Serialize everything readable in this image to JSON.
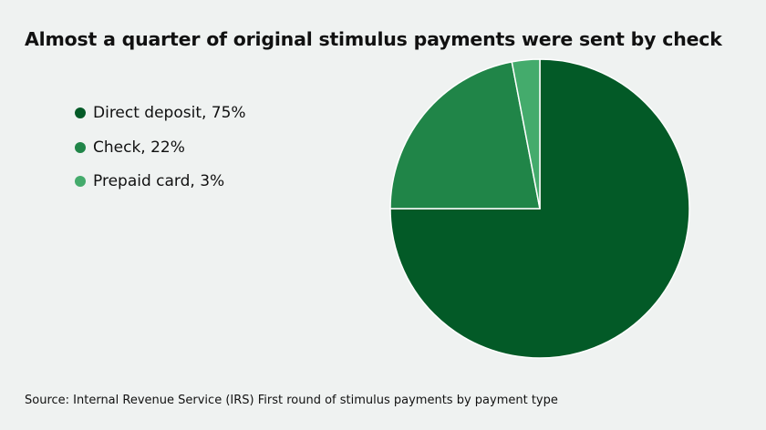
{
  "chart_data": {
    "type": "pie",
    "title": "Almost a quarter of original stimulus payments were sent by check",
    "categories": [
      "Direct deposit",
      "Check",
      "Prepaid card"
    ],
    "values": [
      75,
      22,
      3
    ],
    "unit": "%",
    "legend_labels": [
      "Direct deposit, 75%",
      "Check, 22%",
      "Prepaid card, 3%"
    ],
    "colors": [
      "#035a27",
      "#208548",
      "#44ab6c"
    ],
    "legend_position": "left",
    "source": "Source: Internal Revenue Service (IRS) First round of stimulus payments by payment type"
  }
}
